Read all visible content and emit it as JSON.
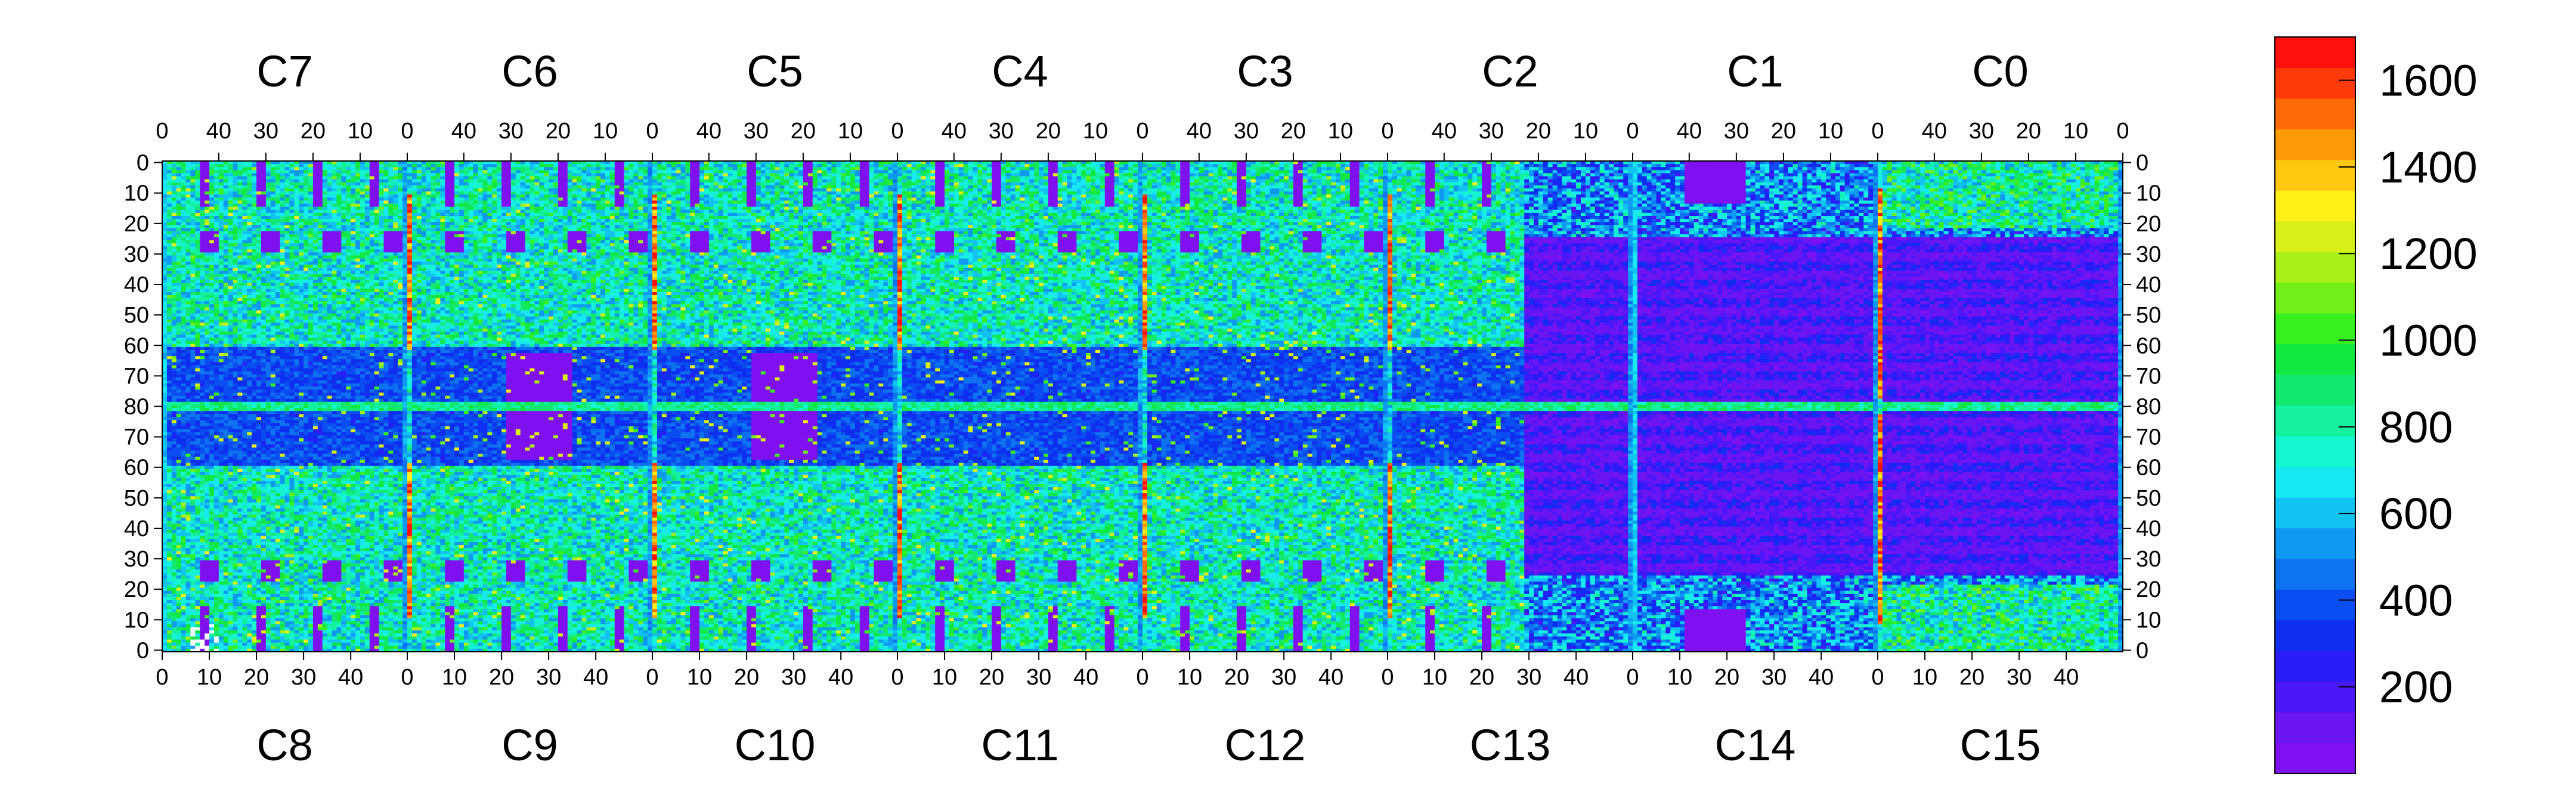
{
  "chart_data": {
    "type": "heatmap",
    "title": "",
    "top_chips": [
      "C7",
      "C6",
      "C5",
      "C4",
      "C3",
      "C2",
      "C1",
      "C0"
    ],
    "bottom_chips": [
      "C8",
      "C9",
      "C10",
      "C11",
      "C12",
      "C13",
      "C14",
      "C15"
    ],
    "top_ticks": [
      "40",
      "30",
      "20",
      "10",
      "0"
    ],
    "top_first_tick": "0",
    "bottom_ticks": [
      "0",
      "10",
      "20",
      "30",
      "40"
    ],
    "row_labels_top": [
      "0",
      "10",
      "20",
      "30",
      "40",
      "50",
      "60",
      "70",
      "80"
    ],
    "row_labels_bottom": [
      "70",
      "60",
      "50",
      "40",
      "30",
      "20",
      "10",
      "0"
    ],
    "colorbar": {
      "min": 0,
      "max": 1700,
      "ticks": [
        "200",
        "400",
        "600",
        "800",
        "1000",
        "1200",
        "1400",
        "1600"
      ],
      "tick_values": [
        200,
        400,
        600,
        800,
        1000,
        1200,
        1400,
        1600
      ],
      "colors": [
        "#7f10ef",
        "#6a15f2",
        "#4a18f8",
        "#2a1cf8",
        "#0f2ef0",
        "#0a4df0",
        "#0d73f0",
        "#0f99f0",
        "#12c3f2",
        "#18e8f2",
        "#14f5d0",
        "#12f0a0",
        "#12e870",
        "#12e840",
        "#38f020",
        "#70f018",
        "#a8f018",
        "#d8f018",
        "#fff018",
        "#ffc810",
        "#ff9a08",
        "#ff6a08",
        "#ff3a0a",
        "#ff100c"
      ]
    },
    "columns_per_chip": 52,
    "rows_per_half": 80
  }
}
